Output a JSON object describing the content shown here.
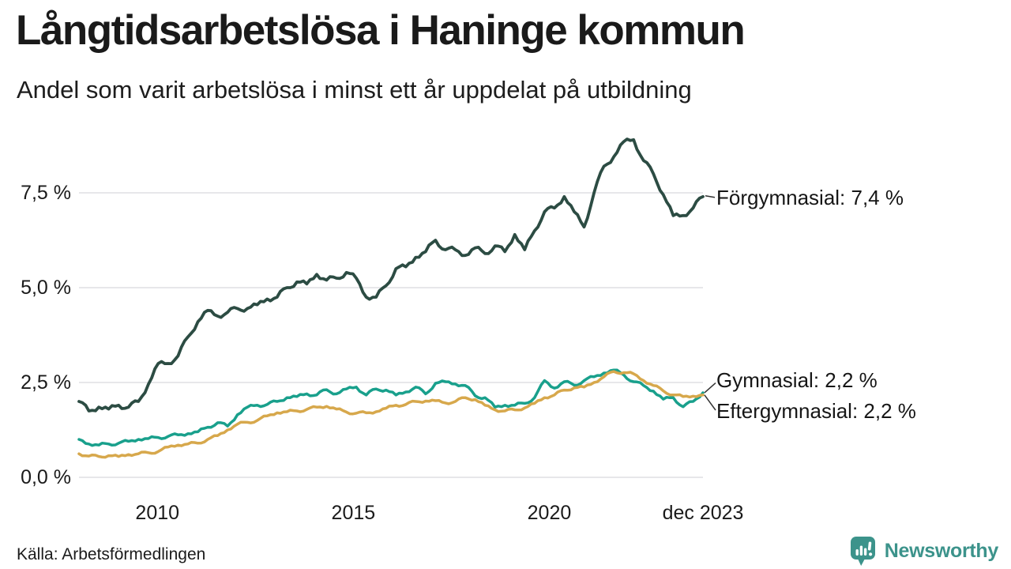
{
  "header": {
    "title": "Långtidsarbetslösa i Haninge kommun",
    "subtitle": "Andel som varit arbetslösa i minst ett år uppdelat på utbildning"
  },
  "footer": {
    "source": "Källa: Arbetsförmedlingen",
    "logo_text": "Newsworthy",
    "logo_color": "#3c938b"
  },
  "chart_data": {
    "type": "line",
    "title": "Långtidsarbetslösa i Haninge kommun",
    "subtitle": "Andel som varit arbetslösa i minst ett år uppdelat på utbildning",
    "unit": "%",
    "x_range": [
      2008.0,
      2023.92
    ],
    "x_tick_labels": [
      "2010",
      "2015",
      "2020",
      "dec 2023"
    ],
    "x_tick_positions": [
      2010,
      2015,
      2020,
      2023.92
    ],
    "y_tick_labels": [
      "7,5 %",
      "5,0 %",
      "2,5 %",
      "0,0 %"
    ],
    "y_tick_values": [
      7.5,
      5.0,
      2.5,
      0.0
    ],
    "ylim": [
      0,
      9.3
    ],
    "grid": "horizontal",
    "grid_color": "#e7e7ea",
    "legend_position": "end-of-line-labels",
    "series": [
      {
        "name": "Förgymnasial",
        "end_label": "Förgymnasial: 7,4 %",
        "end_value": 7.4,
        "color": "#2c4c43",
        "values": [
          2.0,
          1.75,
          1.85,
          1.8,
          1.9,
          1.85,
          2.0,
          2.45,
          3.0,
          3.0,
          3.2,
          3.7,
          4.1,
          4.4,
          4.25,
          4.35,
          4.45,
          4.45,
          4.55,
          4.7,
          4.75,
          5.0,
          5.15,
          5.1,
          5.35,
          5.2,
          5.25,
          5.4,
          5.25,
          4.75,
          4.75,
          5.05,
          5.5,
          5.55,
          5.8,
          5.95,
          6.25,
          6.0,
          6.0,
          5.85,
          6.05,
          5.9,
          6.1,
          5.95,
          6.4,
          6.0,
          6.5,
          7.0,
          7.1,
          7.4,
          7.0,
          6.6,
          7.5,
          8.2,
          8.45,
          8.85,
          8.9,
          8.35,
          8.0,
          7.45,
          6.9,
          6.9,
          7.1,
          7.4
        ]
      },
      {
        "name": "Gymnasial",
        "end_label": "Gymnasial: 2,2 %",
        "end_value": 2.2,
        "color": "#19a08c",
        "values": [
          1.0,
          0.88,
          0.85,
          0.88,
          0.9,
          0.95,
          1.0,
          1.02,
          1.05,
          1.08,
          1.12,
          1.15,
          1.2,
          1.32,
          1.44,
          1.35,
          1.65,
          1.85,
          1.9,
          1.92,
          2.0,
          2.1,
          2.13,
          2.2,
          2.17,
          2.31,
          2.2,
          2.33,
          2.38,
          2.17,
          2.33,
          2.3,
          2.17,
          2.25,
          2.38,
          2.2,
          2.48,
          2.52,
          2.46,
          2.42,
          2.15,
          2.1,
          1.85,
          1.9,
          1.9,
          1.95,
          2.1,
          2.55,
          2.35,
          2.52,
          2.43,
          2.55,
          2.65,
          2.75,
          2.83,
          2.7,
          2.52,
          2.42,
          2.27,
          2.06,
          2.1,
          1.86,
          2.0,
          2.23
        ]
      },
      {
        "name": "Eftergymnasial",
        "end_label": "Eftergymnasial: 2,2 %",
        "end_value": 2.2,
        "color": "#d7a84c",
        "values": [
          0.62,
          0.56,
          0.55,
          0.57,
          0.55,
          0.6,
          0.62,
          0.65,
          0.68,
          0.8,
          0.85,
          0.88,
          0.9,
          1.0,
          1.1,
          1.25,
          1.4,
          1.45,
          1.5,
          1.62,
          1.7,
          1.73,
          1.75,
          1.79,
          1.85,
          1.87,
          1.8,
          1.72,
          1.69,
          1.7,
          1.73,
          1.82,
          1.9,
          1.92,
          2.0,
          2.01,
          2.02,
          1.96,
          2.0,
          2.1,
          2.05,
          1.9,
          1.78,
          1.75,
          1.78,
          1.83,
          1.95,
          2.1,
          2.17,
          2.3,
          2.36,
          2.38,
          2.5,
          2.65,
          2.79,
          2.76,
          2.73,
          2.55,
          2.42,
          2.28,
          2.17,
          2.13,
          2.14,
          2.17
        ]
      }
    ]
  }
}
